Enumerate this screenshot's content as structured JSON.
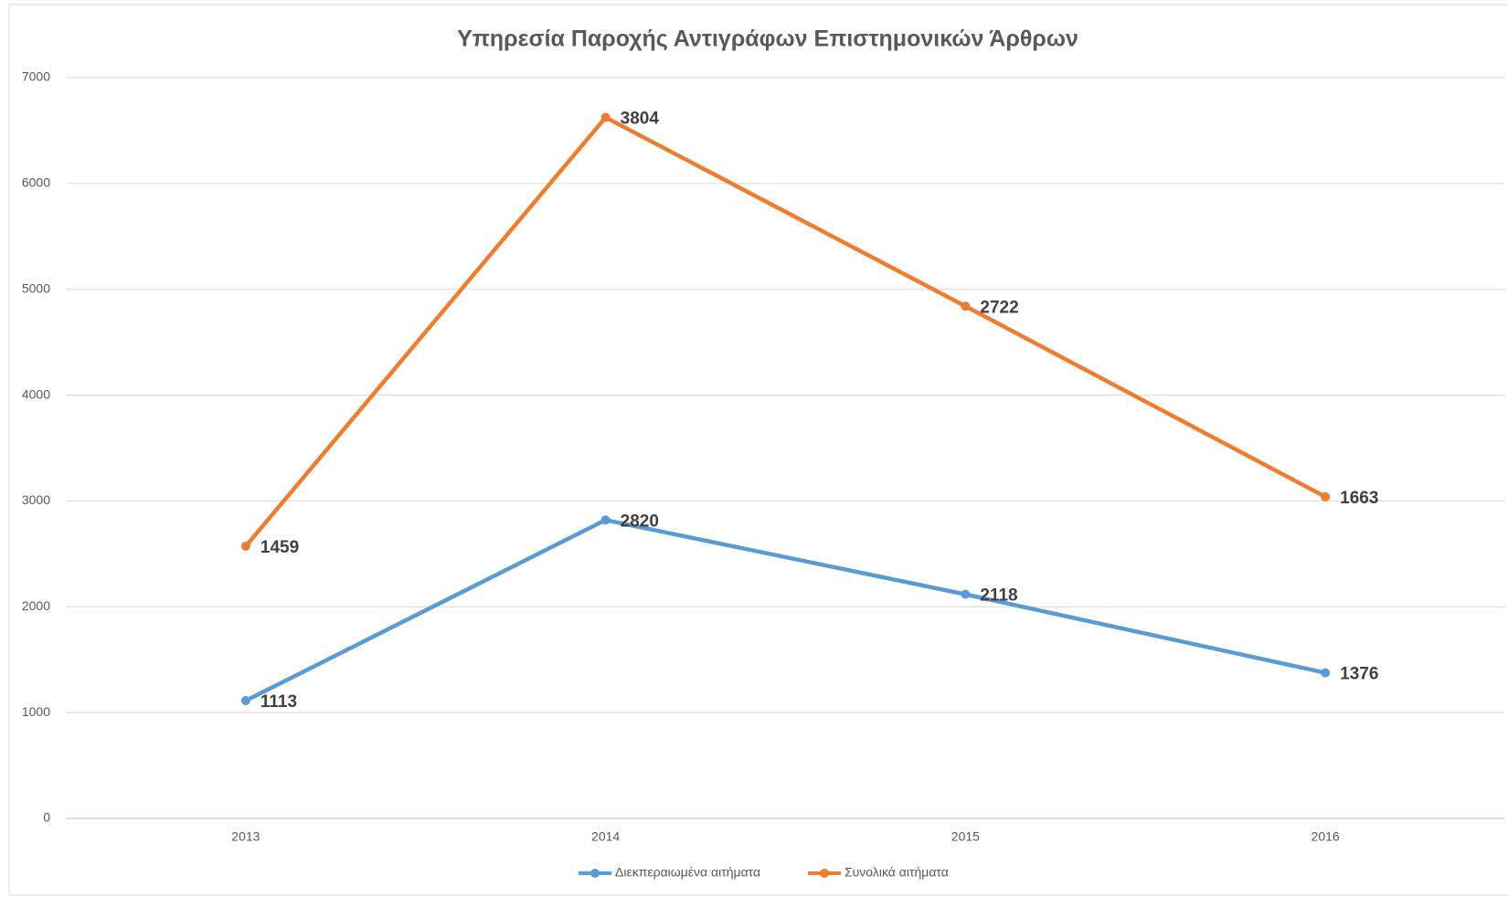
{
  "chart_data": {
    "type": "line",
    "stacked": true,
    "title": "Υπηρεσία Παροχής Αντιγράφων Επιστημονικών Άρθρων",
    "categories": [
      "2013",
      "2014",
      "2015",
      "2016"
    ],
    "series": [
      {
        "name": "Διεκπεραιωμένα αιτήματα",
        "color": "#5b9bd5",
        "values": [
          1113,
          2820,
          2118,
          1376
        ]
      },
      {
        "name": "Συνολικά αιτήματα",
        "color": "#ed7d31",
        "values": [
          1459,
          3804,
          2722,
          1663
        ]
      }
    ],
    "ylim": [
      0,
      7000
    ],
    "yticks": [
      0,
      1000,
      2000,
      3000,
      4000,
      5000,
      6000,
      7000
    ],
    "grid": true,
    "legend": "bottom"
  }
}
